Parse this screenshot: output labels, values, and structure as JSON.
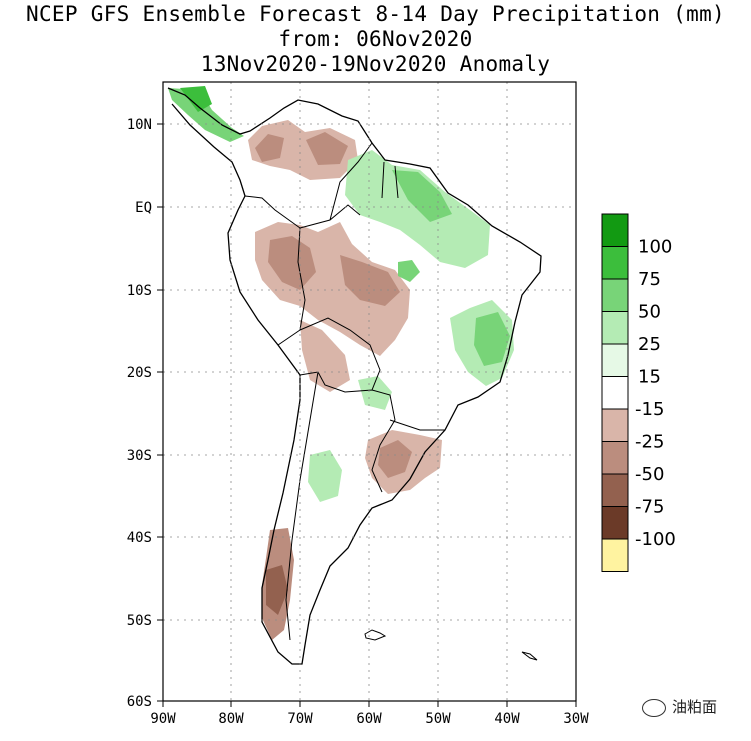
{
  "title": {
    "line1": "NCEP GFS Ensemble Forecast 8-14 Day Precipitation (mm)",
    "line2": "from: 06Nov2020",
    "line3": "13Nov2020-19Nov2020 Anomaly"
  },
  "axes": {
    "lat_labels": [
      "10N",
      "EQ",
      "10S",
      "20S",
      "30S",
      "40S",
      "50S",
      "60S"
    ],
    "lon_labels": [
      "90W",
      "80W",
      "70W",
      "60W",
      "50W",
      "40W",
      "30W"
    ]
  },
  "legend": {
    "entries": [
      {
        "label": "100",
        "color": "#129a12"
      },
      {
        "label": "75",
        "color": "#3cbe3c"
      },
      {
        "label": "50",
        "color": "#78d478"
      },
      {
        "label": "25",
        "color": "#b4ebb4"
      },
      {
        "label": "15",
        "color": "#e6f9e6"
      },
      {
        "label": "-15",
        "color": "#ffffff"
      },
      {
        "label": "-25",
        "color": "#d9b5a9"
      },
      {
        "label": "-50",
        "color": "#bb8d7e"
      },
      {
        "label": "-75",
        "color": "#93614f"
      },
      {
        "label": "-100",
        "color": "#6b3a28"
      },
      {
        "label": "",
        "color": "#fff3a0"
      }
    ]
  },
  "watermark": "油粕面",
  "colors": {
    "dry1": "#d9b5a9",
    "dry2": "#bb8d7e",
    "wet1": "#b4ebb4",
    "wet2": "#78d478",
    "wet3": "#3cbe3c",
    "wet4": "#129a12"
  }
}
